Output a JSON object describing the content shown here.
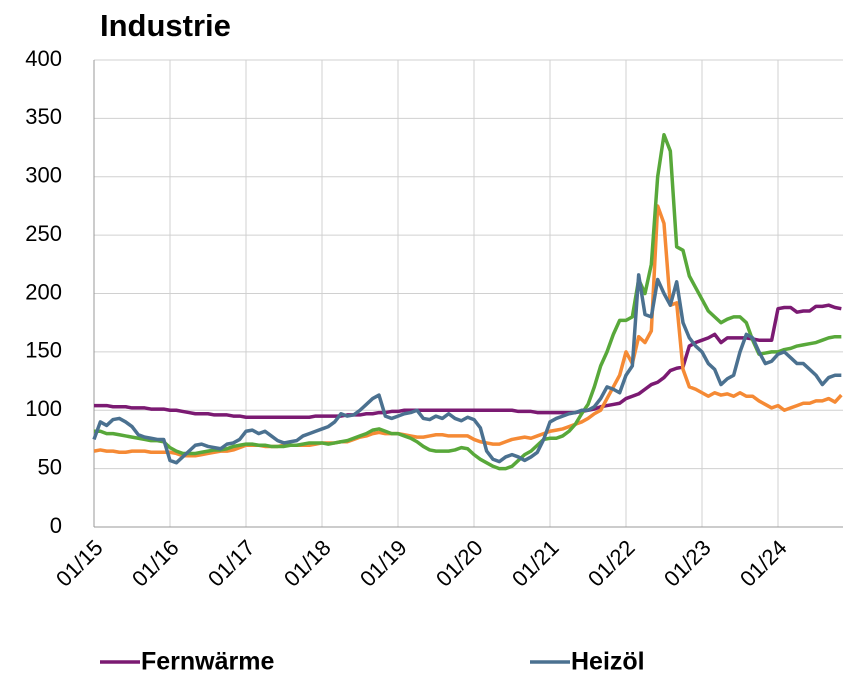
{
  "chart_data": {
    "type": "line",
    "title": "Industrie",
    "categories": [
      "01/15",
      null,
      null,
      null,
      null,
      null,
      null,
      null,
      null,
      null,
      null,
      null,
      "01/16",
      null,
      null,
      null,
      null,
      null,
      null,
      null,
      null,
      null,
      null,
      null,
      "01/17",
      null,
      null,
      null,
      null,
      null,
      null,
      null,
      null,
      null,
      null,
      null,
      "01/18",
      null,
      null,
      null,
      null,
      null,
      null,
      null,
      null,
      null,
      null,
      null,
      "01/19",
      null,
      null,
      null,
      null,
      null,
      null,
      null,
      null,
      null,
      null,
      null,
      "01/20",
      null,
      null,
      null,
      null,
      null,
      null,
      null,
      null,
      null,
      null,
      null,
      "01/21",
      null,
      null,
      null,
      null,
      null,
      null,
      null,
      null,
      null,
      null,
      null,
      "01/22",
      null,
      null,
      null,
      null,
      null,
      null,
      null,
      null,
      null,
      null,
      null,
      "01/23",
      null,
      null,
      null,
      null,
      null,
      null,
      null,
      null,
      null,
      null,
      null,
      "01/24",
      null,
      null,
      null,
      null,
      null,
      null,
      null,
      null,
      null,
      null
    ],
    "series": [
      {
        "name": "Fernwärme",
        "color": "#7b1a72",
        "values": [
          104,
          104,
          104,
          103,
          103,
          103,
          102,
          102,
          102,
          101,
          101,
          101,
          100,
          100,
          99,
          98,
          97,
          97,
          97,
          96,
          96,
          96,
          95,
          95,
          94,
          94,
          94,
          94,
          94,
          94,
          94,
          94,
          94,
          94,
          94,
          95,
          95,
          95,
          95,
          95,
          96,
          96,
          96,
          97,
          97,
          98,
          98,
          99,
          99,
          100,
          100,
          100,
          100,
          100,
          100,
          100,
          100,
          100,
          100,
          100,
          100,
          100,
          100,
          100,
          100,
          100,
          100,
          99,
          99,
          99,
          98,
          98,
          98,
          98,
          98,
          98,
          98,
          99,
          100,
          101,
          103,
          104,
          105,
          106,
          110,
          112,
          114,
          118,
          122,
          124,
          128,
          134,
          136,
          137,
          155,
          158,
          160,
          162,
          165,
          158,
          162,
          162,
          162,
          162,
          161,
          160,
          160,
          160,
          187,
          188,
          188,
          184,
          185,
          185,
          189,
          189,
          190,
          188,
          187
        ]
      },
      {
        "color": "#f58a35",
        "values": [
          65,
          66,
          65,
          65,
          64,
          64,
          65,
          65,
          65,
          64,
          64,
          64,
          64,
          63,
          61,
          61,
          61,
          62,
          63,
          64,
          65,
          65,
          66,
          68,
          70,
          70,
          70,
          69,
          69,
          69,
          70,
          70,
          70,
          70,
          70,
          71,
          72,
          72,
          72,
          73,
          73,
          75,
          77,
          78,
          80,
          81,
          80,
          80,
          80,
          79,
          78,
          77,
          77,
          78,
          79,
          79,
          78,
          78,
          78,
          78,
          75,
          73,
          72,
          71,
          71,
          73,
          75,
          76,
          77,
          76,
          78,
          80,
          82,
          83,
          84,
          86,
          88,
          90,
          93,
          97,
          100,
          110,
          120,
          130,
          150,
          140,
          163,
          158,
          168,
          275,
          260,
          190,
          192,
          135,
          120,
          118,
          115,
          112,
          115,
          113,
          114,
          112,
          115,
          112,
          112,
          108,
          105,
          102,
          104,
          100,
          102,
          104,
          106,
          106,
          108,
          108,
          110,
          107,
          113
        ]
      },
      {
        "color": "#58a83a",
        "values": [
          82,
          82,
          80,
          80,
          79,
          78,
          77,
          76,
          75,
          74,
          74,
          73,
          68,
          65,
          63,
          63,
          63,
          64,
          65,
          66,
          66,
          67,
          69,
          70,
          71,
          71,
          70,
          70,
          69,
          69,
          69,
          70,
          70,
          71,
          72,
          72,
          72,
          71,
          72,
          73,
          74,
          76,
          78,
          80,
          83,
          84,
          82,
          80,
          80,
          78,
          76,
          73,
          69,
          66,
          65,
          65,
          65,
          66,
          68,
          67,
          62,
          58,
          55,
          52,
          50,
          50,
          52,
          57,
          62,
          65,
          70,
          75,
          76,
          76,
          78,
          82,
          88,
          97,
          105,
          120,
          138,
          150,
          165,
          177,
          177,
          180,
          212,
          200,
          225,
          300,
          336,
          322,
          240,
          237,
          215,
          205,
          195,
          185,
          180,
          175,
          178,
          180,
          180,
          175,
          160,
          148,
          149,
          150,
          150,
          152,
          153,
          155,
          156,
          157,
          158,
          160,
          162,
          163,
          163
        ]
      },
      {
        "name": "Heizöl",
        "color": "#4b7190",
        "values": [
          75,
          90,
          87,
          92,
          93,
          90,
          86,
          79,
          77,
          76,
          75,
          75,
          57,
          55,
          60,
          65,
          70,
          71,
          69,
          68,
          67,
          71,
          72,
          75,
          82,
          83,
          80,
          82,
          78,
          74,
          72,
          73,
          74,
          78,
          80,
          82,
          84,
          86,
          90,
          97,
          95,
          96,
          100,
          105,
          110,
          113,
          95,
          93,
          95,
          97,
          98,
          100,
          93,
          92,
          95,
          93,
          97,
          93,
          91,
          94,
          92,
          85,
          65,
          58,
          56,
          60,
          62,
          60,
          57,
          60,
          64,
          75,
          90,
          93,
          95,
          97,
          98,
          100,
          100,
          103,
          110,
          120,
          118,
          115,
          130,
          138,
          216,
          182,
          180,
          212,
          200,
          190,
          210,
          175,
          162,
          155,
          150,
          140,
          135,
          122,
          127,
          130,
          150,
          165,
          162,
          150,
          140,
          142,
          148,
          150,
          145,
          140,
          140,
          135,
          130,
          122,
          128,
          130,
          130
        ]
      }
    ],
    "ylim": [
      0,
      400
    ],
    "yticks": [
      0,
      50,
      100,
      150,
      200,
      250,
      300,
      350,
      400
    ],
    "grid": true
  }
}
